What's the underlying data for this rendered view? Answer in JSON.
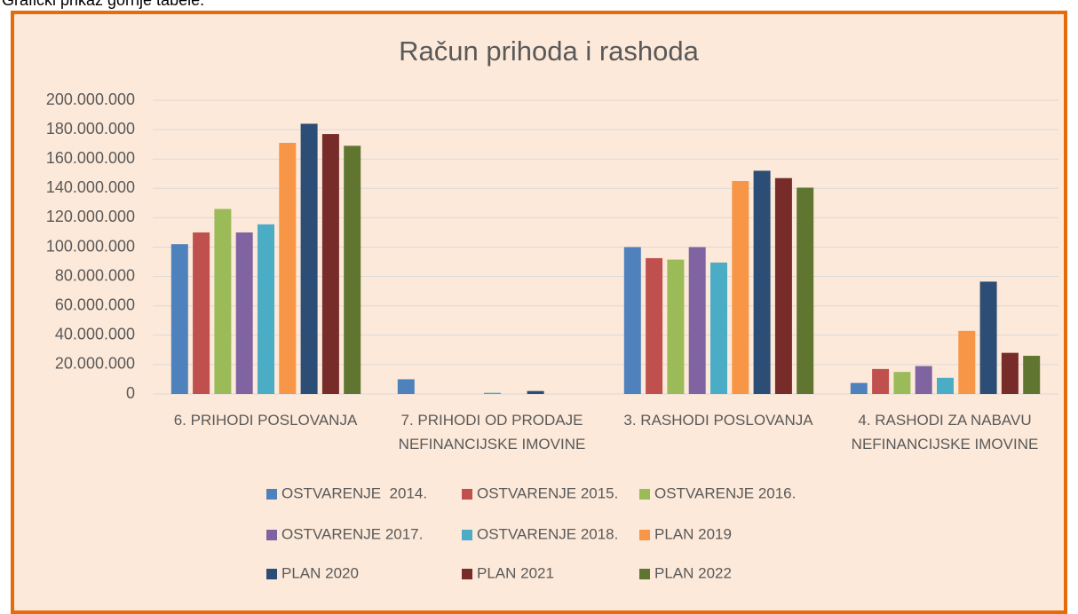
{
  "caption": "Grafički prikaz gornje tabele.",
  "chart_data": {
    "type": "bar",
    "title": "Račun prihoda i rashoda",
    "categories": [
      "6. PRIHODI POSLOVANJA",
      "7. PRIHODI OD PRODAJE NEFINANCIJSKE IMOVINE",
      "3. RASHODI POSLOVANJA",
      "4. RASHODI ZA NABAVU NEFINANCIJSKE IMOVINE"
    ],
    "series": [
      {
        "name": "OSTVARENJE  2014.",
        "color": "#4f81bd",
        "values": [
          102000000,
          10000000,
          100000000,
          7500000
        ]
      },
      {
        "name": "OSTVARENJE 2015.",
        "color": "#c0504d",
        "values": [
          110000000,
          0,
          92500000,
          17000000
        ]
      },
      {
        "name": "OSTVARENJE 2016.",
        "color": "#9bbb59",
        "values": [
          126000000,
          0,
          91500000,
          15000000
        ]
      },
      {
        "name": "OSTVARENJE 2017.",
        "color": "#8064a2",
        "values": [
          110000000,
          0,
          100000000,
          19000000
        ]
      },
      {
        "name": "OSTVARENJE 2018.",
        "color": "#4bacc6",
        "values": [
          115500000,
          800000,
          89500000,
          11000000
        ]
      },
      {
        "name": "PLAN 2019",
        "color": "#f79646",
        "values": [
          171000000,
          0,
          145000000,
          43000000
        ]
      },
      {
        "name": "PLAN 2020",
        "color": "#2c4d75",
        "values": [
          184000000,
          2000000,
          152000000,
          76500000
        ]
      },
      {
        "name": "PLAN 2021",
        "color": "#772c2a",
        "values": [
          177000000,
          0,
          147000000,
          28000000
        ]
      },
      {
        "name": "PLAN 2022",
        "color": "#5f7530",
        "values": [
          169000000,
          0,
          140500000,
          26000000
        ]
      }
    ],
    "ylim": [
      0,
      200000000
    ],
    "yticks": [
      0,
      {
        "value": 20000000,
        "label": "20.000.000"
      },
      {
        "value": 40000000,
        "label": "40.000.000"
      },
      {
        "value": 60000000,
        "label": "60.000.000"
      },
      {
        "value": 80000000,
        "label": "80.000.000"
      },
      {
        "value": 100000000,
        "label": "100.000.000"
      },
      {
        "value": 120000000,
        "label": "120.000.000"
      },
      {
        "value": 140000000,
        "label": "140.000.000"
      },
      {
        "value": 160000000,
        "label": "160.000.000"
      },
      {
        "value": 180000000,
        "label": "180.000.000"
      },
      {
        "value": 200000000,
        "label": "200.000.000"
      }
    ],
    "grid": true,
    "legend": "bottom"
  }
}
